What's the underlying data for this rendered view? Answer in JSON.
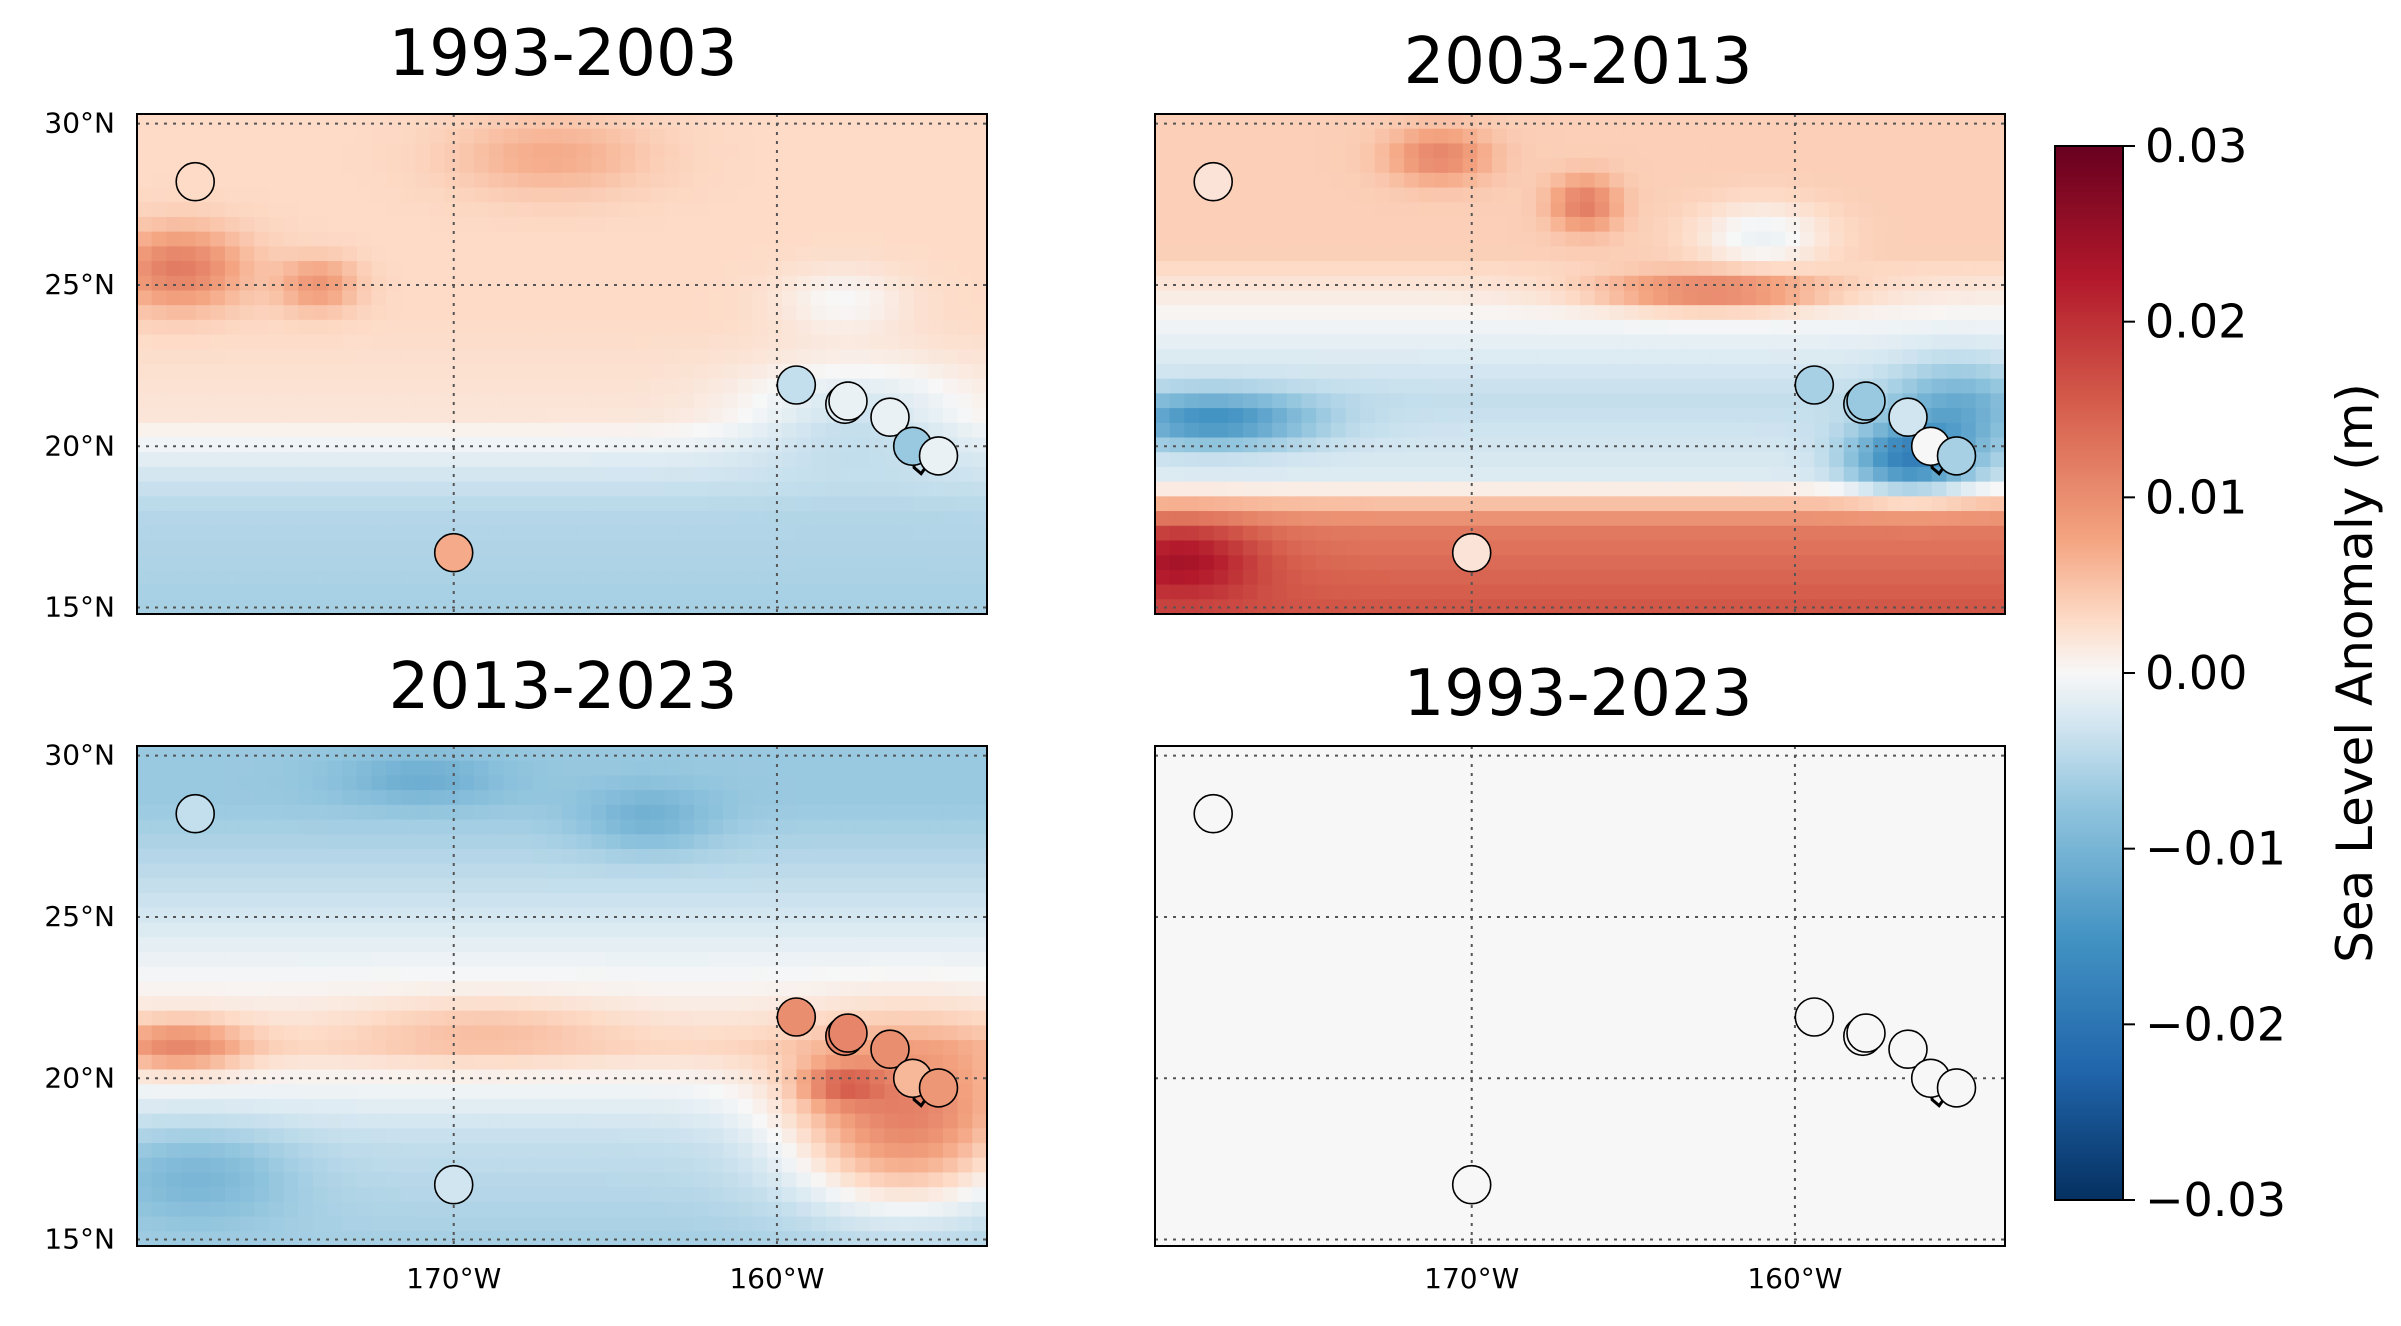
{
  "chart_data": {
    "type": "heatmap",
    "colormap": "RdBu_r",
    "colorbar": {
      "label": "Sea Level Anomaly (m)",
      "vmin": -0.03,
      "vmax": 0.03,
      "ticks": [
        0.03,
        0.02,
        0.01,
        0.0,
        -0.01,
        -0.02,
        -0.03
      ],
      "tick_labels": [
        "0.03",
        "0.02",
        "0.01",
        "0.00",
        "−0.01",
        "−0.02",
        "−0.03"
      ],
      "placement": "right"
    },
    "map_extent": {
      "lon": [
        -179.8,
        -153.5
      ],
      "lat": [
        14.8,
        30.3
      ]
    },
    "lat_ticks": [
      30,
      25,
      20,
      15
    ],
    "lat_tick_labels": [
      "30°N",
      "25°N",
      "20°N",
      "15°N"
    ],
    "lon_ticks": [
      -170,
      -160
    ],
    "lon_tick_labels": [
      "170°W",
      "160°W"
    ],
    "grid": true,
    "stations": [
      {
        "lon": -178.0,
        "lat": 28.2
      },
      {
        "lon": -170.0,
        "lat": 16.7
      },
      {
        "lon": -159.4,
        "lat": 21.9
      },
      {
        "lon": -157.9,
        "lat": 21.3
      },
      {
        "lon": -157.8,
        "lat": 21.4
      },
      {
        "lon": -156.5,
        "lat": 20.9
      },
      {
        "lon": -155.8,
        "lat": 20.0
      },
      {
        "lon": -155.0,
        "lat": 19.7
      }
    ],
    "panels": [
      {
        "title": "1993-2003",
        "station_values": [
          0.003,
          0.007,
          -0.004,
          -0.002,
          -0.001,
          -0.001,
          -0.007,
          -0.001
        ],
        "field": {
          "base": [
            [
              15.0,
              -0.006
            ],
            [
              18.0,
              -0.005
            ],
            [
              19.5,
              -0.002
            ],
            [
              21.0,
              0.002
            ],
            [
              24.0,
              0.003
            ],
            [
              30.0,
              0.003
            ]
          ],
          "blobs": [
            {
              "lon": -178.5,
              "lat": 25.5,
              "amp": 0.009,
              "rx": 2.0,
              "ry": 1.2
            },
            {
              "lon": -174.2,
              "lat": 25.0,
              "amp": 0.006,
              "rx": 1.2,
              "ry": 0.8
            },
            {
              "lon": -157.5,
              "lat": 21.0,
              "amp": -0.005,
              "rx": 3.5,
              "ry": 1.6
            },
            {
              "lon": -158.0,
              "lat": 24.5,
              "amp": -0.003,
              "rx": 2.0,
              "ry": 1.0
            },
            {
              "lon": -167.0,
              "lat": 29.0,
              "amp": 0.004,
              "rx": 3.0,
              "ry": 1.2
            }
          ]
        }
      },
      {
        "title": "2003-2013",
        "station_values": [
          0.002,
          0.002,
          -0.006,
          -0.006,
          -0.007,
          -0.003,
          0.0,
          -0.006
        ],
        "field": {
          "base": [
            [
              15.0,
              0.016
            ],
            [
              17.5,
              0.012
            ],
            [
              19.0,
              -0.002
            ],
            [
              21.5,
              -0.004
            ],
            [
              23.5,
              -0.001
            ],
            [
              26.0,
              0.004
            ],
            [
              30.0,
              0.004
            ]
          ],
          "blobs": [
            {
              "lon": -179.0,
              "lat": 16.5,
              "amp": 0.01,
              "rx": 2.5,
              "ry": 1.2
            },
            {
              "lon": -178.0,
              "lat": 20.8,
              "amp": -0.012,
              "rx": 3.0,
              "ry": 0.8
            },
            {
              "lon": -162.5,
              "lat": 24.8,
              "amp": 0.01,
              "rx": 3.5,
              "ry": 0.6
            },
            {
              "lon": -166.5,
              "lat": 27.5,
              "amp": 0.008,
              "rx": 1.0,
              "ry": 0.8
            },
            {
              "lon": -171.0,
              "lat": 29.0,
              "amp": 0.007,
              "rx": 1.5,
              "ry": 0.8
            },
            {
              "lon": -156.5,
              "lat": 19.6,
              "amp": -0.014,
              "rx": 1.8,
              "ry": 1.0
            },
            {
              "lon": -155.0,
              "lat": 21.0,
              "amp": -0.008,
              "rx": 2.0,
              "ry": 1.5
            },
            {
              "lon": -161.0,
              "lat": 26.5,
              "amp": -0.005,
              "rx": 2.0,
              "ry": 1.0
            }
          ]
        }
      },
      {
        "title": "2013-2023",
        "station_values": [
          -0.004,
          -0.003,
          0.01,
          0.011,
          0.011,
          0.01,
          0.006,
          0.009
        ],
        "field": {
          "base": [
            [
              15.0,
              -0.006
            ],
            [
              18.0,
              -0.004
            ],
            [
              19.5,
              -0.001
            ],
            [
              21.0,
              0.003
            ],
            [
              23.0,
              0.0
            ],
            [
              26.0,
              -0.004
            ],
            [
              28.5,
              -0.007
            ],
            [
              30.0,
              -0.007
            ]
          ],
          "blobs": [
            {
              "lon": -178.0,
              "lat": 17.0,
              "amp": -0.005,
              "rx": 3.0,
              "ry": 1.5
            },
            {
              "lon": -156.0,
              "lat": 18.5,
              "amp": 0.014,
              "rx": 3.5,
              "ry": 2.5
            },
            {
              "lon": -158.0,
              "lat": 19.8,
              "amp": 0.008,
              "rx": 1.2,
              "ry": 0.6
            },
            {
              "lon": -178.5,
              "lat": 21.0,
              "amp": 0.008,
              "rx": 2.0,
              "ry": 0.8
            },
            {
              "lon": -171.0,
              "lat": 29.3,
              "amp": -0.004,
              "rx": 2.5,
              "ry": 0.8
            },
            {
              "lon": -164.0,
              "lat": 28.0,
              "amp": -0.004,
              "rx": 2.0,
              "ry": 1.0
            },
            {
              "lon": -169.0,
              "lat": 21.5,
              "amp": 0.003,
              "rx": 4.0,
              "ry": 1.0
            }
          ]
        }
      },
      {
        "title": "1993-2023",
        "station_values": [
          0.0,
          0.0,
          0.0,
          0.0,
          0.0,
          0.0,
          0.0,
          0.0
        ],
        "field": {
          "base": [
            [
              15.0,
              0.0
            ],
            [
              30.0,
              0.0
            ]
          ],
          "blobs": []
        }
      }
    ]
  }
}
